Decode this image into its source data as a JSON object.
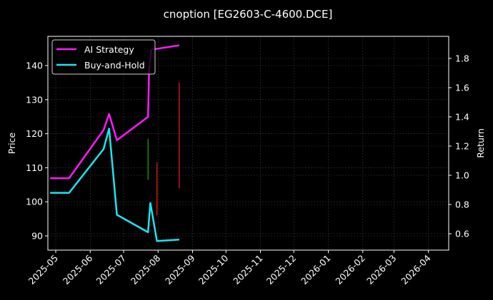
{
  "chart_data": {
    "type": "line",
    "title": "cnoption [EG2603-C-4600.DCE]",
    "xlabel": "",
    "ylabel": "Price",
    "y2label": "Return",
    "x_ticks": [
      "2025-05",
      "2025-06",
      "2025-07",
      "2025-08",
      "2025-09",
      "2025-10",
      "2025-11",
      "2025-12",
      "2026-01",
      "2026-02",
      "2026-03",
      "2026-04"
    ],
    "ylim": [
      86,
      149
    ],
    "y_ticks": [
      90,
      100,
      110,
      120,
      130,
      140
    ],
    "y2lim": [
      0.48,
      1.96
    ],
    "y2_ticks": [
      0.6,
      0.8,
      1.0,
      1.2,
      1.4,
      1.8,
      1.6
    ],
    "grid": true,
    "legend_position": "upper left",
    "legend": [
      "AI Strategy",
      "Buy-and-Hold"
    ],
    "series": [
      {
        "name": "AI Strategy",
        "axis": "right",
        "color": "#ff1aff",
        "x": [
          "2025-04-26",
          "2025-05-13",
          "2025-06-13",
          "2025-06-18",
          "2025-06-25",
          "2025-07-23",
          "2025-07-24",
          "2025-07-26",
          "2025-08-20"
        ],
        "values": [
          0.98,
          0.98,
          1.31,
          1.42,
          1.24,
          1.4,
          1.74,
          1.86,
          1.89
        ]
      },
      {
        "name": "Buy-and-Hold",
        "axis": "right",
        "color": "#1ae6f0",
        "x": [
          "2025-04-26",
          "2025-05-13",
          "2025-06-13",
          "2025-06-18",
          "2025-06-25",
          "2025-07-23",
          "2025-07-25",
          "2025-07-31",
          "2025-08-20"
        ],
        "values": [
          0.88,
          0.88,
          1.18,
          1.32,
          0.73,
          0.61,
          0.81,
          0.55,
          0.56
        ]
      }
    ],
    "price_bars": [
      {
        "date": "2025-07-23",
        "low": 106.5,
        "high": 118.5,
        "color": "#1a9e1a"
      },
      {
        "date": "2025-07-31",
        "low": 96,
        "high": 111.5,
        "color": "#e01b1b"
      },
      {
        "date": "2025-08-20",
        "low": 104,
        "high": 135,
        "color": "#e01b1b"
      }
    ]
  },
  "colors": {
    "background": "#000000",
    "grid": "#3a3a3a",
    "axis": "#ffffff",
    "ai_strategy": "#ff1aff",
    "buy_and_hold": "#1ae6f0",
    "up_bar": "#1a9e1a",
    "down_bar": "#e01b1b"
  }
}
